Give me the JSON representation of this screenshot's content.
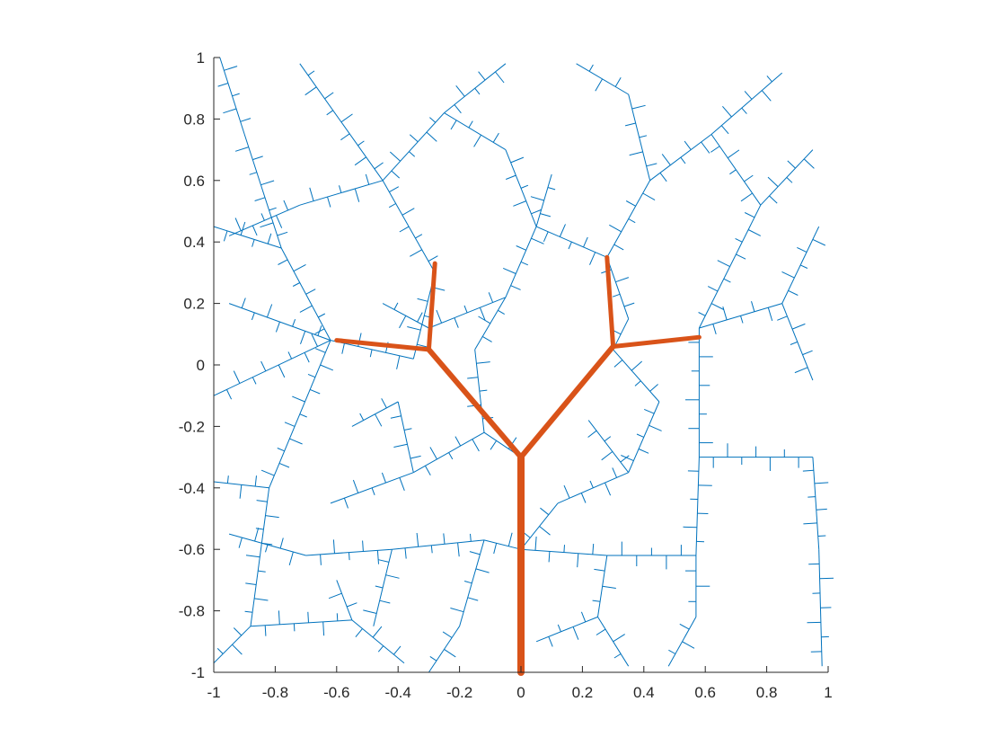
{
  "chart_data": {
    "type": "line",
    "title": "",
    "xlabel": "",
    "ylabel": "",
    "xlim": [
      -1,
      1
    ],
    "ylim": [
      -1,
      1
    ],
    "aspect": "equal",
    "grid": false,
    "legend": "none",
    "x_ticks": [
      "-1",
      "-0.8",
      "-0.6",
      "-0.4",
      "-0.2",
      "0",
      "0.2",
      "0.4",
      "0.6",
      "0.8",
      "1"
    ],
    "y_ticks": [
      "1",
      "0.8",
      "0.6",
      "0.4",
      "0.2",
      "0",
      "-0.2",
      "-0.4",
      "-0.6",
      "-0.8",
      "-1"
    ],
    "colors": {
      "network": "#0072bd",
      "tree": "#d95319",
      "axis": "#262626"
    },
    "series": [
      {
        "kind": "branching-network",
        "color": "#0072bd",
        "segments": [
          [
            [
              -1.0,
              -0.1
            ],
            [
              -0.62,
              0.08
            ]
          ],
          [
            [
              -0.62,
              0.08
            ],
            [
              -0.82,
              -0.4
            ]
          ],
          [
            [
              -0.82,
              -0.4
            ],
            [
              -0.88,
              -0.85
            ]
          ],
          [
            [
              -0.88,
              -0.85
            ],
            [
              -1.0,
              -0.97
            ]
          ],
          [
            [
              -0.88,
              -0.85
            ],
            [
              -0.55,
              -0.83
            ]
          ],
          [
            [
              -0.55,
              -0.83
            ],
            [
              -0.38,
              -0.97
            ]
          ],
          [
            [
              -0.62,
              0.08
            ],
            [
              -0.35,
              0.02
            ]
          ],
          [
            [
              -0.35,
              0.02
            ],
            [
              -0.28,
              0.3
            ]
          ],
          [
            [
              -0.28,
              0.3
            ],
            [
              -0.45,
              0.6
            ]
          ],
          [
            [
              -0.45,
              0.6
            ],
            [
              -0.72,
              0.98
            ]
          ],
          [
            [
              -0.45,
              0.6
            ],
            [
              -0.72,
              0.52
            ]
          ],
          [
            [
              -0.72,
              0.52
            ],
            [
              -0.95,
              0.42
            ]
          ],
          [
            [
              -0.45,
              0.6
            ],
            [
              -0.25,
              0.82
            ]
          ],
          [
            [
              -0.25,
              0.82
            ],
            [
              -0.05,
              0.98
            ]
          ],
          [
            [
              -1.0,
              0.45
            ],
            [
              -0.78,
              0.38
            ]
          ],
          [
            [
              -0.78,
              0.38
            ],
            [
              -0.62,
              0.08
            ]
          ],
          [
            [
              -0.78,
              0.38
            ],
            [
              -0.9,
              0.75
            ]
          ],
          [
            [
              -0.9,
              0.75
            ],
            [
              -0.98,
              1.0
            ]
          ],
          [
            [
              -0.95,
              -0.55
            ],
            [
              -0.7,
              -0.62
            ]
          ],
          [
            [
              -0.7,
              -0.62
            ],
            [
              -0.42,
              -0.6
            ]
          ],
          [
            [
              -0.42,
              -0.6
            ],
            [
              -0.12,
              -0.57
            ]
          ],
          [
            [
              -0.12,
              -0.57
            ],
            [
              0.0,
              -0.6
            ]
          ],
          [
            [
              -0.42,
              -0.6
            ],
            [
              -0.48,
              -0.85
            ]
          ],
          [
            [
              -0.12,
              -0.57
            ],
            [
              -0.2,
              -0.85
            ]
          ],
          [
            [
              -0.2,
              -0.85
            ],
            [
              -0.3,
              -1.0
            ]
          ],
          [
            [
              -0.62,
              -0.45
            ],
            [
              -0.35,
              -0.35
            ]
          ],
          [
            [
              -0.35,
              -0.35
            ],
            [
              -0.12,
              -0.22
            ]
          ],
          [
            [
              -0.12,
              -0.22
            ],
            [
              0.0,
              -0.3
            ]
          ],
          [
            [
              -0.35,
              -0.35
            ],
            [
              -0.4,
              -0.12
            ]
          ],
          [
            [
              -0.4,
              -0.12
            ],
            [
              -0.55,
              -0.2
            ]
          ],
          [
            [
              -0.12,
              -0.22
            ],
            [
              -0.15,
              0.05
            ]
          ],
          [
            [
              -0.15,
              0.05
            ],
            [
              -0.05,
              0.22
            ]
          ],
          [
            [
              -0.05,
              0.22
            ],
            [
              0.05,
              0.45
            ]
          ],
          [
            [
              0.05,
              0.45
            ],
            [
              -0.05,
              0.7
            ]
          ],
          [
            [
              -0.05,
              0.7
            ],
            [
              -0.25,
              0.82
            ]
          ],
          [
            [
              0.05,
              0.45
            ],
            [
              0.28,
              0.35
            ]
          ],
          [
            [
              0.28,
              0.35
            ],
            [
              0.42,
              0.6
            ]
          ],
          [
            [
              0.42,
              0.6
            ],
            [
              0.35,
              0.88
            ]
          ],
          [
            [
              0.35,
              0.88
            ],
            [
              0.18,
              0.98
            ]
          ],
          [
            [
              0.42,
              0.6
            ],
            [
              0.62,
              0.75
            ]
          ],
          [
            [
              0.62,
              0.75
            ],
            [
              0.85,
              0.95
            ]
          ],
          [
            [
              0.62,
              0.75
            ],
            [
              0.78,
              0.52
            ]
          ],
          [
            [
              0.78,
              0.52
            ],
            [
              0.58,
              0.12
            ]
          ],
          [
            [
              0.58,
              0.12
            ],
            [
              0.58,
              -0.3
            ]
          ],
          [
            [
              0.58,
              -0.3
            ],
            [
              0.57,
              -0.62
            ]
          ],
          [
            [
              0.57,
              -0.62
            ],
            [
              0.57,
              -0.82
            ]
          ],
          [
            [
              0.57,
              -0.82
            ],
            [
              0.48,
              -0.98
            ]
          ],
          [
            [
              0.57,
              -0.62
            ],
            [
              0.28,
              -0.62
            ]
          ],
          [
            [
              0.28,
              -0.62
            ],
            [
              0.0,
              -0.6
            ]
          ],
          [
            [
              0.58,
              -0.3
            ],
            [
              0.95,
              -0.3
            ]
          ],
          [
            [
              0.95,
              -0.3
            ],
            [
              0.97,
              -0.6
            ]
          ],
          [
            [
              0.97,
              -0.6
            ],
            [
              0.98,
              -0.98
            ]
          ],
          [
            [
              0.58,
              0.12
            ],
            [
              0.85,
              0.2
            ]
          ],
          [
            [
              0.85,
              0.2
            ],
            [
              0.97,
              0.45
            ]
          ],
          [
            [
              0.85,
              0.2
            ],
            [
              0.95,
              -0.05
            ]
          ],
          [
            [
              0.78,
              0.52
            ],
            [
              0.95,
              0.7
            ]
          ],
          [
            [
              0.28,
              0.35
            ],
            [
              0.35,
              0.15
            ]
          ],
          [
            [
              0.35,
              0.15
            ],
            [
              0.3,
              0.05
            ]
          ],
          [
            [
              0.3,
              0.05
            ],
            [
              0.45,
              -0.12
            ]
          ],
          [
            [
              0.45,
              -0.12
            ],
            [
              0.35,
              -0.35
            ]
          ],
          [
            [
              0.35,
              -0.35
            ],
            [
              0.12,
              -0.45
            ]
          ],
          [
            [
              0.12,
              -0.45
            ],
            [
              0.0,
              -0.6
            ]
          ],
          [
            [
              0.35,
              -0.35
            ],
            [
              0.22,
              -0.18
            ]
          ],
          [
            [
              0.28,
              -0.62
            ],
            [
              0.25,
              -0.82
            ]
          ],
          [
            [
              0.25,
              -0.82
            ],
            [
              0.05,
              -0.9
            ]
          ],
          [
            [
              0.25,
              -0.82
            ],
            [
              0.35,
              -0.98
            ]
          ],
          [
            [
              -0.05,
              0.22
            ],
            [
              -0.3,
              0.12
            ]
          ],
          [
            [
              -0.3,
              0.12
            ],
            [
              -0.45,
              0.2
            ]
          ],
          [
            [
              -0.62,
              0.08
            ],
            [
              -0.95,
              0.2
            ]
          ],
          [
            [
              0.05,
              0.45
            ],
            [
              0.1,
              0.62
            ]
          ],
          [
            [
              -0.55,
              -0.83
            ],
            [
              -0.6,
              -0.7
            ]
          ],
          [
            [
              -0.82,
              -0.4
            ],
            [
              -1.0,
              -0.38
            ]
          ]
        ]
      },
      {
        "kind": "highlighted-tree",
        "color": "#d95319",
        "segments": [
          [
            [
              0.0,
              -1.0
            ],
            [
              0.0,
              -0.3
            ]
          ],
          [
            [
              0.0,
              -0.3
            ],
            [
              -0.3,
              0.05
            ]
          ],
          [
            [
              -0.3,
              0.05
            ],
            [
              -0.6,
              0.08
            ]
          ],
          [
            [
              -0.3,
              0.05
            ],
            [
              -0.28,
              0.33
            ]
          ],
          [
            [
              0.0,
              -0.3
            ],
            [
              0.3,
              0.06
            ]
          ],
          [
            [
              0.3,
              0.06
            ],
            [
              0.58,
              0.09
            ]
          ],
          [
            [
              0.3,
              0.06
            ],
            [
              0.28,
              0.35
            ]
          ]
        ]
      }
    ]
  }
}
